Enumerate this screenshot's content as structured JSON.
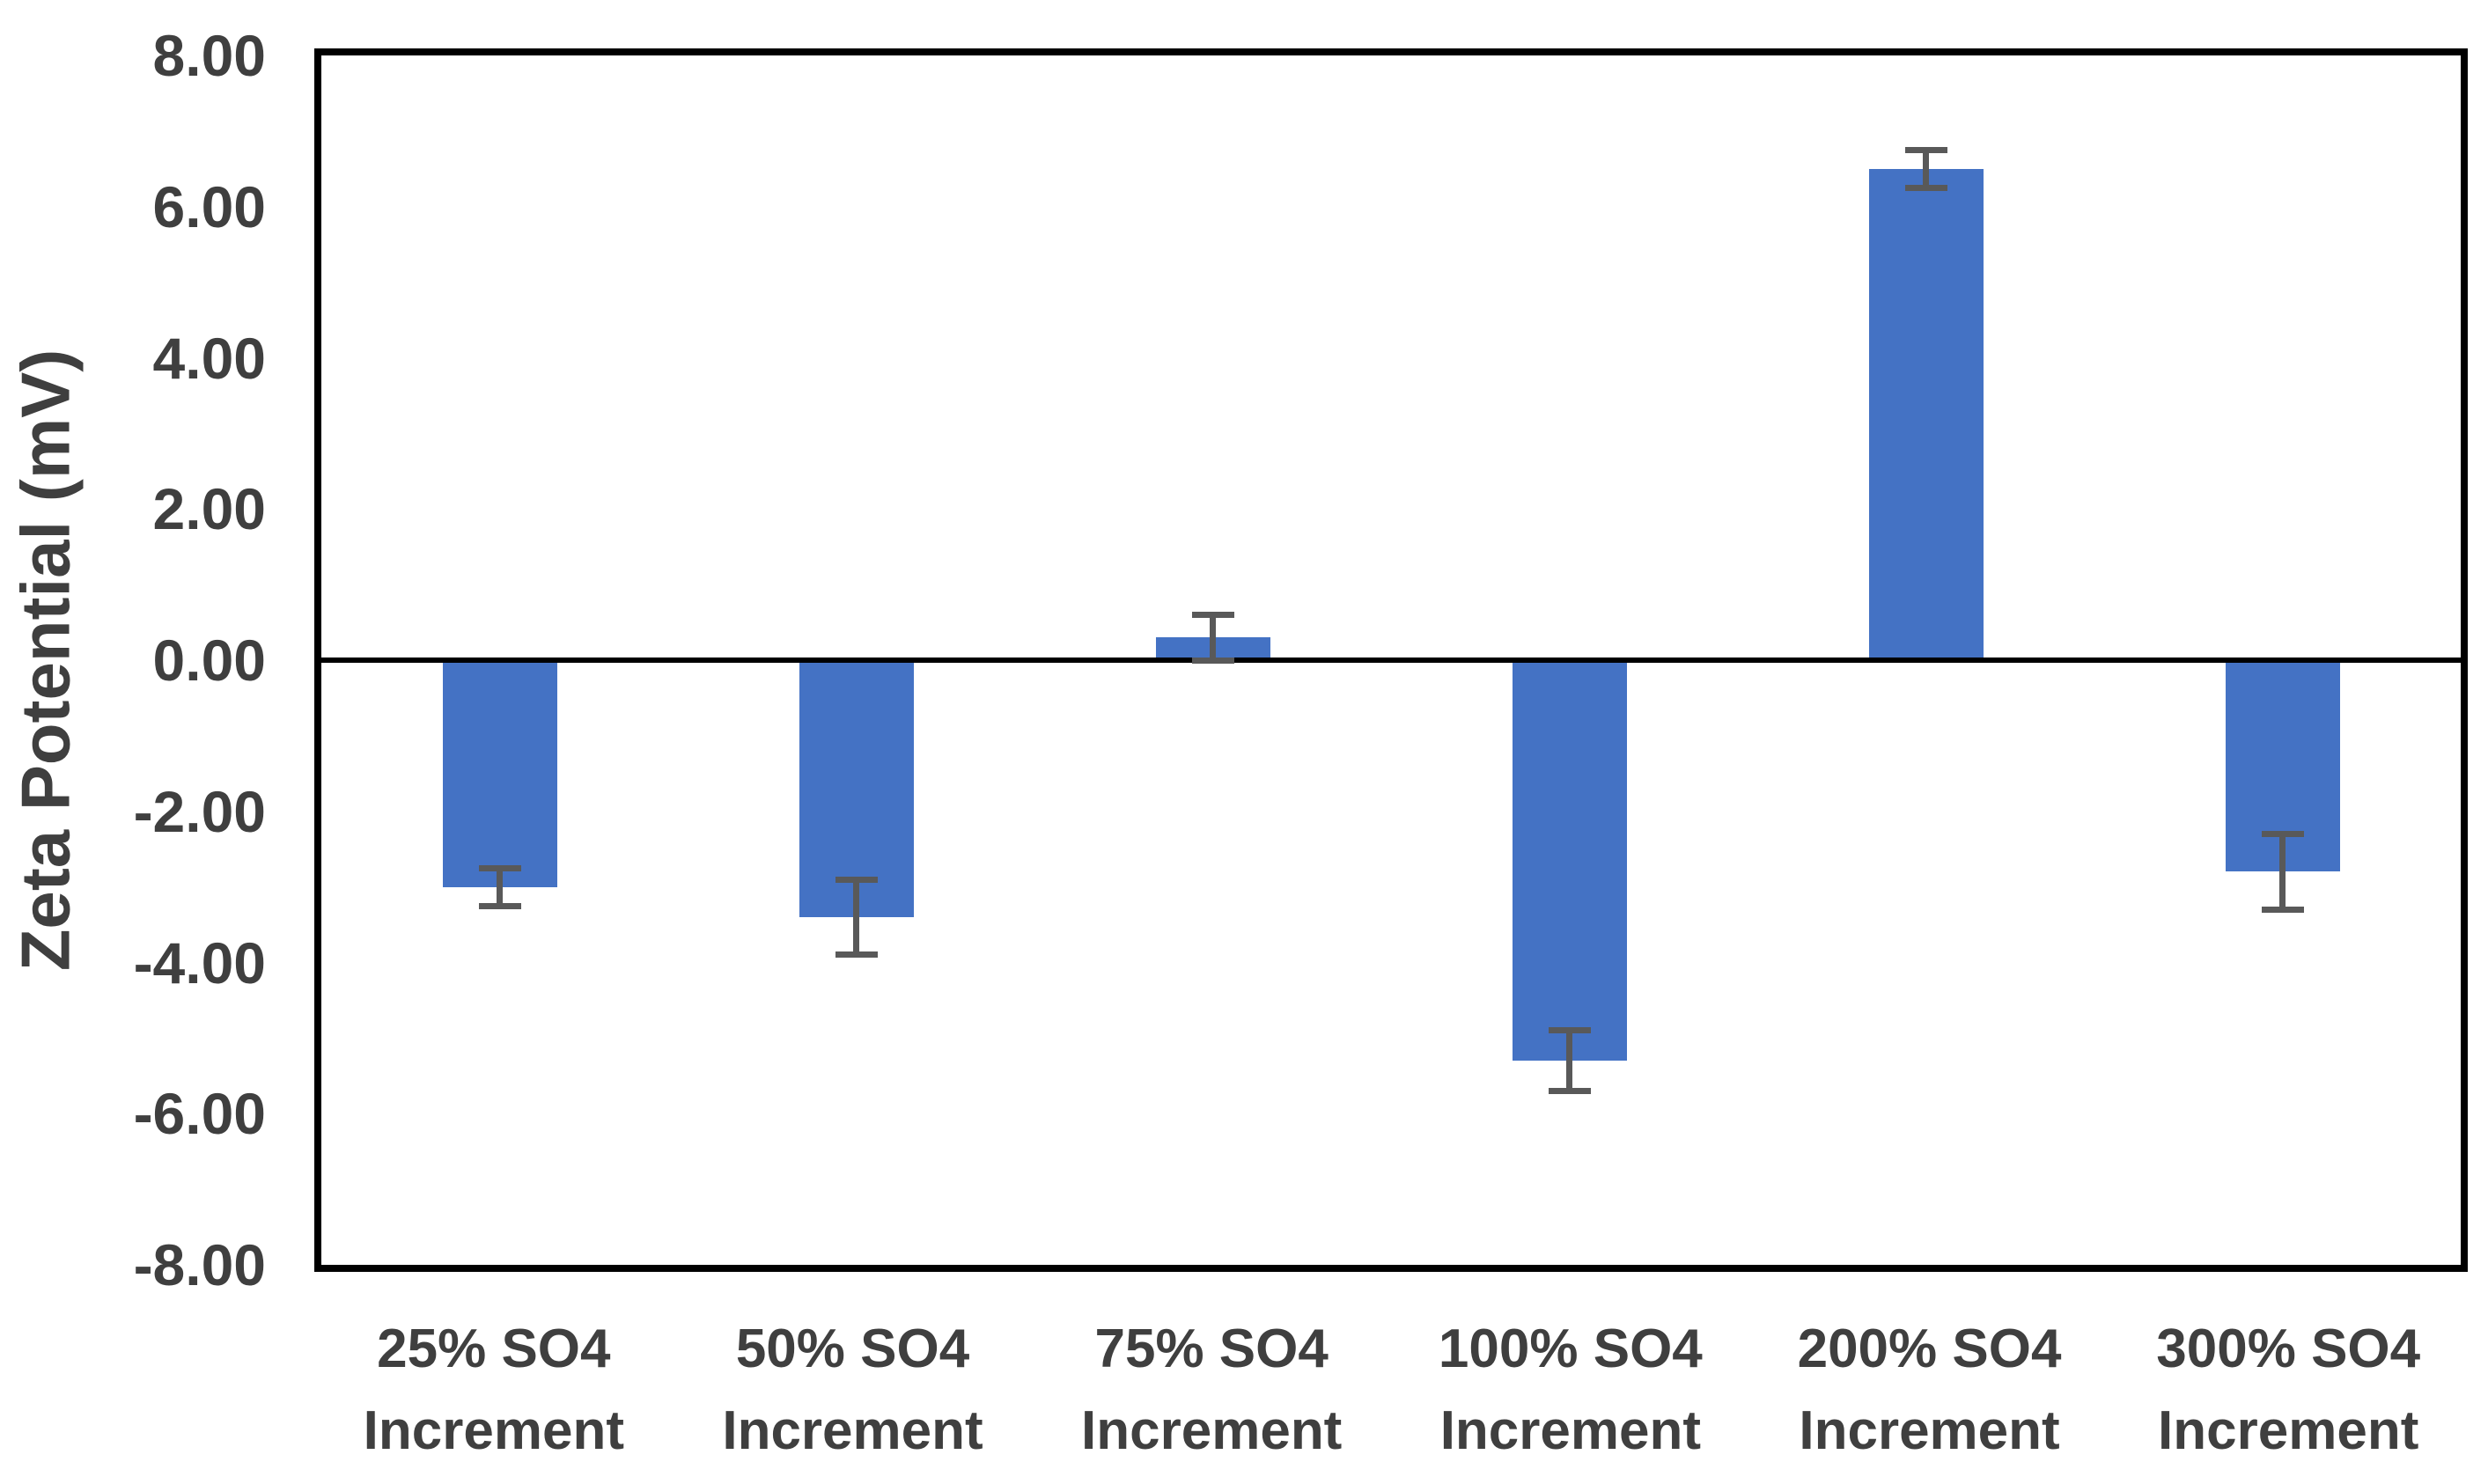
{
  "figure": {
    "background_color": "#ffffff",
    "text_color": "#3F3F3F"
  },
  "chart_data": {
    "type": "bar",
    "title": "",
    "xlabel": "",
    "ylabel": "Zeta Potential (mV)",
    "categories": [
      "25% SO4 Increment",
      "50% SO4 Increment",
      "75% SO4 Increment",
      "100% SO4 Increment",
      "200% SO4 Increment",
      "300% SO4 Increment"
    ],
    "values": [
      -3.0,
      -3.4,
      0.3,
      -5.3,
      6.5,
      -2.8
    ],
    "errors": [
      0.25,
      0.5,
      0.3,
      0.4,
      0.25,
      0.5
    ],
    "ylim": [
      -8,
      8
    ],
    "ytick_step": 2,
    "yticks": [
      "8.00",
      "6.00",
      "4.00",
      "2.00",
      "0.00",
      "-2.00",
      "-4.00",
      "-6.00",
      "-8.00"
    ],
    "grid": "off",
    "legend": "none",
    "bar_color": "#4472C4",
    "error_bar_color": "#595959",
    "axis_color": "#000000"
  }
}
